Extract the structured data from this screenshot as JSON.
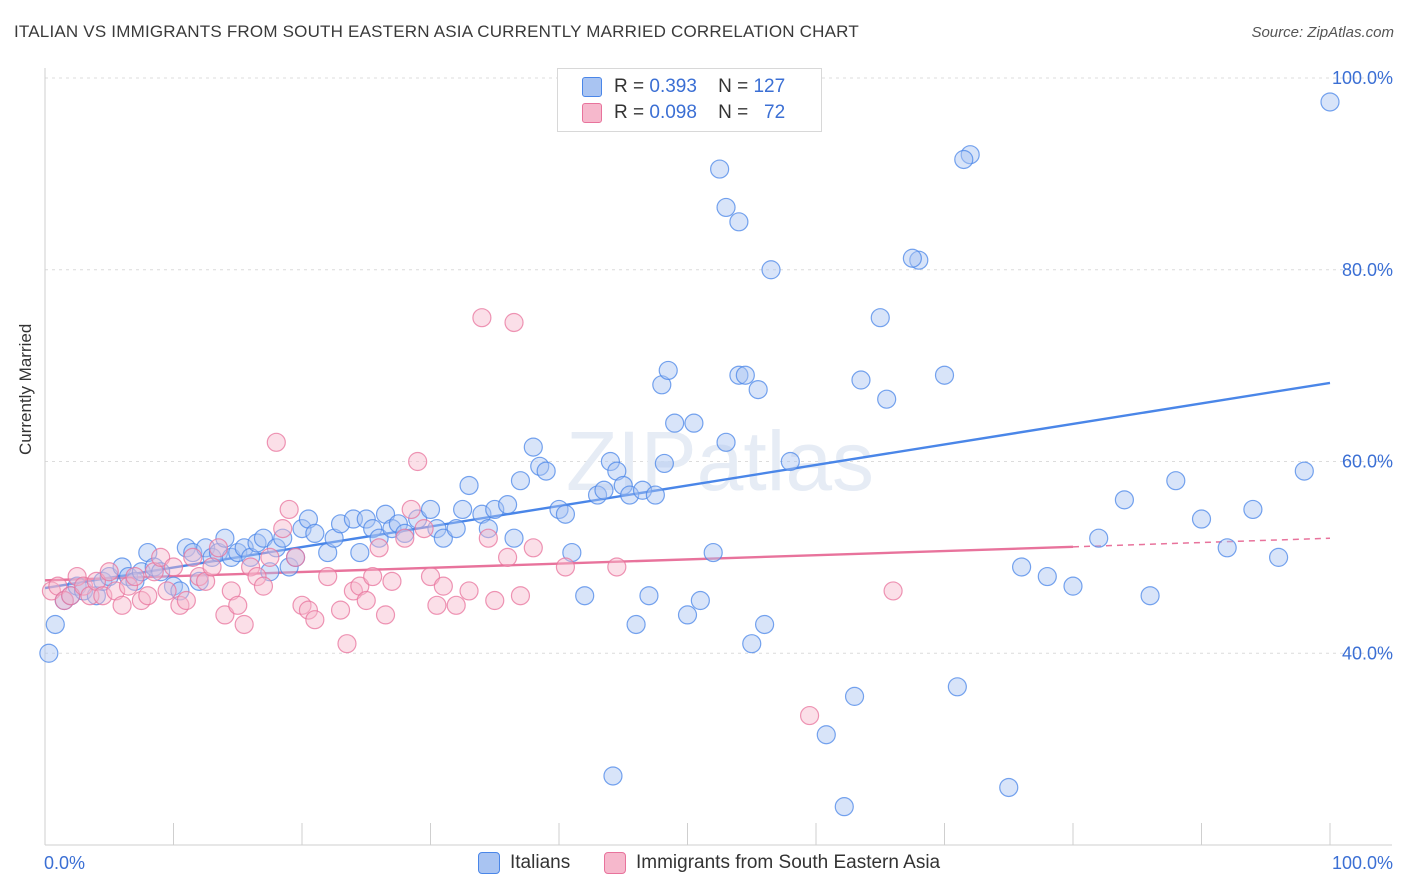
{
  "title": "ITALIAN VS IMMIGRANTS FROM SOUTH EASTERN ASIA CURRENTLY MARRIED CORRELATION CHART",
  "source": "Source: ZipAtlas.com",
  "watermark": "ZIPatlas",
  "legend": {
    "rows": [
      {
        "r_label": "R =",
        "r_value": "0.393",
        "n_label": "N =",
        "n_value": "127"
      },
      {
        "r_label": "R =",
        "r_value": "0.098",
        "n_label": "N =",
        "n_value": "72"
      }
    ]
  },
  "bottom_legend": [
    "Italians",
    "Immigrants from South Eastern Asia"
  ],
  "colors": {
    "blue": "#4a86e8",
    "blue_fill": "#a9c4f2",
    "pink": "#e8739c",
    "pink_fill": "#f6b8cc",
    "axis_text": "#3b6fd4"
  },
  "chart_data": {
    "type": "scatter",
    "xlabel": "",
    "ylabel": "Currently Married",
    "xlim": [
      0,
      100
    ],
    "ylim": [
      20,
      100
    ],
    "x_tick_labels": [
      "0.0%",
      "100.0%"
    ],
    "y_ticks": [
      40,
      60,
      80,
      100
    ],
    "y_tick_labels": [
      "40.0%",
      "60.0%",
      "80.0%",
      "100.0%"
    ],
    "grid": true,
    "series": [
      {
        "name": "Italians",
        "color": "#4a86e8",
        "trend": {
          "x": [
            0,
            100
          ],
          "y": [
            46.8,
            68.2
          ]
        },
        "points": [
          [
            0.3,
            40
          ],
          [
            0.8,
            43
          ],
          [
            1.5,
            45.5
          ],
          [
            2,
            46
          ],
          [
            2.5,
            47
          ],
          [
            3,
            46.5
          ],
          [
            4,
            46
          ],
          [
            4.5,
            47.5
          ],
          [
            5,
            48
          ],
          [
            6,
            49
          ],
          [
            6.5,
            48
          ],
          [
            7,
            47.5
          ],
          [
            7.5,
            48.5
          ],
          [
            8,
            50.5
          ],
          [
            8.5,
            49
          ],
          [
            9,
            48.5
          ],
          [
            10,
            47
          ],
          [
            10.5,
            46.5
          ],
          [
            11,
            51
          ],
          [
            11.5,
            50.5
          ],
          [
            12,
            47.5
          ],
          [
            12.5,
            51
          ],
          [
            13,
            50
          ],
          [
            13.5,
            50.5
          ],
          [
            14,
            52
          ],
          [
            14.5,
            50
          ],
          [
            15,
            50.5
          ],
          [
            15.5,
            51
          ],
          [
            16,
            50
          ],
          [
            16.5,
            51.5
          ],
          [
            17,
            52
          ],
          [
            17.5,
            48.5
          ],
          [
            18,
            51
          ],
          [
            18.5,
            52
          ],
          [
            19,
            49
          ],
          [
            19.5,
            50
          ],
          [
            20,
            53
          ],
          [
            20.5,
            54
          ],
          [
            21,
            52.5
          ],
          [
            22,
            50.5
          ],
          [
            22.5,
            52
          ],
          [
            23,
            53.5
          ],
          [
            24,
            54
          ],
          [
            24.5,
            50.5
          ],
          [
            25,
            54
          ],
          [
            25.5,
            53
          ],
          [
            26,
            52
          ],
          [
            26.5,
            54.5
          ],
          [
            27,
            53
          ],
          [
            27.5,
            53.5
          ],
          [
            28,
            52.5
          ],
          [
            29,
            54
          ],
          [
            30,
            55
          ],
          [
            30.5,
            53
          ],
          [
            31,
            52
          ],
          [
            32,
            53
          ],
          [
            32.5,
            55
          ],
          [
            33,
            57.5
          ],
          [
            34,
            54.5
          ],
          [
            34.5,
            53
          ],
          [
            35,
            55
          ],
          [
            36,
            55.5
          ],
          [
            36.5,
            52
          ],
          [
            37,
            58
          ],
          [
            38,
            61.5
          ],
          [
            38.5,
            59.5
          ],
          [
            39,
            59
          ],
          [
            40,
            55
          ],
          [
            40.5,
            54.5
          ],
          [
            41,
            50.5
          ],
          [
            42,
            46
          ],
          [
            43,
            56.5
          ],
          [
            43.5,
            57
          ],
          [
            44,
            60
          ],
          [
            44.5,
            59
          ],
          [
            45,
            57.5
          ],
          [
            45.5,
            56.5
          ],
          [
            46,
            43
          ],
          [
            46.5,
            57
          ],
          [
            47,
            46
          ],
          [
            47.5,
            56.5
          ],
          [
            48,
            68
          ],
          [
            48.5,
            69.5
          ],
          [
            49,
            64
          ],
          [
            50,
            44
          ],
          [
            50.5,
            64
          ],
          [
            51,
            45.5
          ],
          [
            52,
            50.5
          ],
          [
            53,
            62
          ],
          [
            54,
            69
          ],
          [
            54.5,
            69
          ],
          [
            55,
            41
          ],
          [
            55.5,
            67.5
          ],
          [
            56,
            43
          ],
          [
            58,
            60
          ],
          [
            63,
            35.5
          ],
          [
            65,
            75
          ],
          [
            65.5,
            66.5
          ],
          [
            68,
            81
          ],
          [
            70,
            69
          ],
          [
            71,
            36.5
          ],
          [
            72,
            92
          ],
          [
            75,
            26
          ],
          [
            76,
            49
          ],
          [
            78,
            48
          ],
          [
            80,
            47
          ],
          [
            82,
            52
          ],
          [
            84,
            56
          ],
          [
            86,
            46
          ],
          [
            88,
            58
          ],
          [
            90,
            54
          ],
          [
            92,
            51
          ],
          [
            94,
            55
          ],
          [
            96,
            50
          ],
          [
            98,
            59
          ],
          [
            100,
            97.5
          ],
          [
            48.2,
            59.8
          ],
          [
            56.5,
            80
          ],
          [
            54,
            85
          ],
          [
            53,
            86.5
          ],
          [
            52.5,
            90.5
          ],
          [
            71.5,
            91.5
          ],
          [
            67.5,
            81.2
          ],
          [
            63.5,
            68.5
          ],
          [
            60.8,
            31.5
          ],
          [
            62.2,
            24
          ],
          [
            44.2,
            27.2
          ]
        ]
      },
      {
        "name": "Immigrants from South Eastern Asia",
        "color": "#e8739c",
        "trend": {
          "x": [
            0,
            80
          ],
          "y": [
            47.6,
            51.1
          ]
        },
        "trend_dashed": {
          "x": [
            80,
            100
          ],
          "y": [
            51.1,
            52
          ]
        },
        "points": [
          [
            0.5,
            46.5
          ],
          [
            1,
            47
          ],
          [
            1.5,
            45.5
          ],
          [
            2,
            46
          ],
          [
            2.5,
            48
          ],
          [
            3,
            47
          ],
          [
            3.5,
            46
          ],
          [
            4,
            47.5
          ],
          [
            4.5,
            46
          ],
          [
            5,
            48.5
          ],
          [
            5.5,
            46.5
          ],
          [
            6,
            45
          ],
          [
            6.5,
            47
          ],
          [
            7,
            48
          ],
          [
            7.5,
            45.5
          ],
          [
            8,
            46
          ],
          [
            8.5,
            48.5
          ],
          [
            9,
            50
          ],
          [
            9.5,
            46.5
          ],
          [
            10,
            49
          ],
          [
            10.5,
            45
          ],
          [
            11,
            45.5
          ],
          [
            11.5,
            50
          ],
          [
            12,
            48
          ],
          [
            12.5,
            47.5
          ],
          [
            13,
            49
          ],
          [
            13.5,
            51
          ],
          [
            14,
            44
          ],
          [
            14.5,
            46.5
          ],
          [
            15,
            45
          ],
          [
            15.5,
            43
          ],
          [
            16,
            49
          ],
          [
            16.5,
            48
          ],
          [
            17,
            47
          ],
          [
            17.5,
            50
          ],
          [
            18,
            62
          ],
          [
            18.5,
            53
          ],
          [
            19,
            55
          ],
          [
            19.5,
            50
          ],
          [
            20,
            45
          ],
          [
            20.5,
            44.5
          ],
          [
            21,
            43.5
          ],
          [
            22,
            48
          ],
          [
            23,
            44.5
          ],
          [
            23.5,
            41
          ],
          [
            24,
            46.5
          ],
          [
            24.5,
            47
          ],
          [
            25,
            45.5
          ],
          [
            25.5,
            48
          ],
          [
            26,
            51
          ],
          [
            26.5,
            44
          ],
          [
            27,
            47.5
          ],
          [
            28,
            52
          ],
          [
            28.5,
            55
          ],
          [
            29,
            60
          ],
          [
            29.5,
            53
          ],
          [
            30,
            48
          ],
          [
            30.5,
            45
          ],
          [
            31,
            47
          ],
          [
            32,
            45
          ],
          [
            33,
            46.5
          ],
          [
            34,
            75
          ],
          [
            34.5,
            52
          ],
          [
            35,
            45.5
          ],
          [
            36,
            50
          ],
          [
            37,
            46
          ],
          [
            38,
            51
          ],
          [
            40.5,
            49
          ],
          [
            44.5,
            49
          ],
          [
            59.5,
            33.5
          ],
          [
            36.5,
            74.5
          ],
          [
            66,
            46.5
          ]
        ]
      }
    ]
  }
}
